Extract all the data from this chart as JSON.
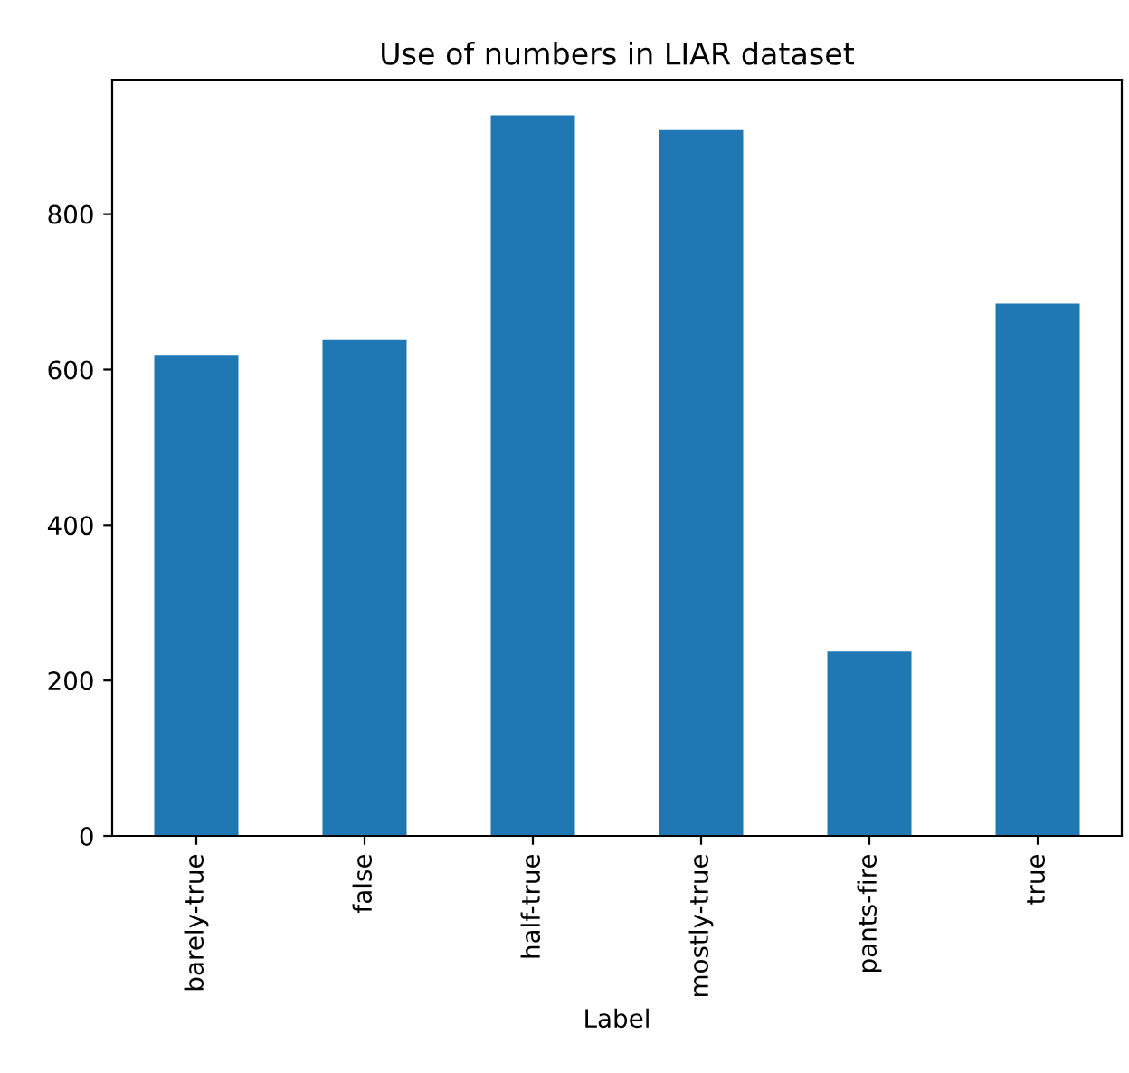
{
  "chart_data": {
    "type": "bar",
    "title": "Use of numbers in LIAR dataset",
    "xlabel": "Label",
    "categories": [
      "barely-true",
      "false",
      "half-true",
      "mostly-true",
      "pants-fire",
      "true"
    ],
    "values": [
      619,
      638,
      927,
      908,
      237,
      685
    ],
    "color": "#1f77b4",
    "ylim": [
      0,
      973
    ],
    "yticks": [
      0,
      200,
      400,
      600,
      800
    ],
    "grid": false
  }
}
